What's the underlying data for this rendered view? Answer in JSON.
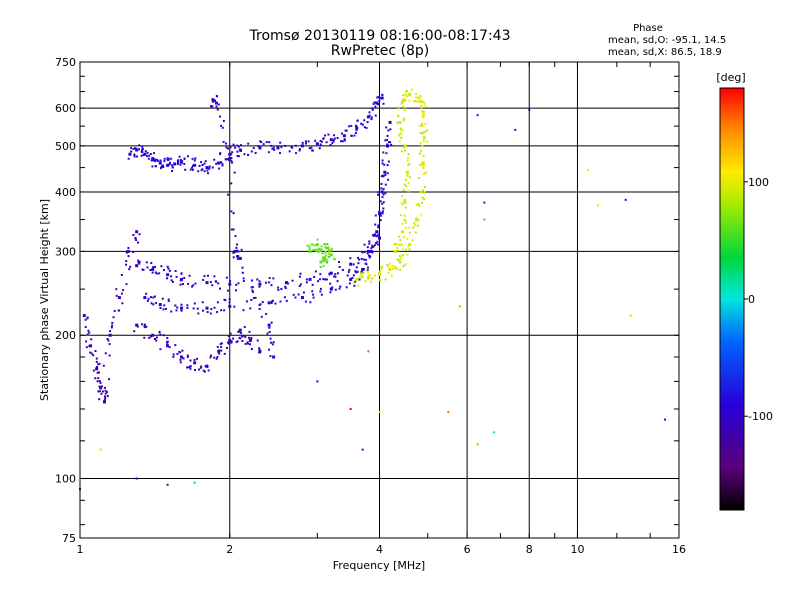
{
  "chart_data": {
    "type": "scatter",
    "title": "Tromsø 20130119 08:16:00-08:17:43",
    "subtitle": "RwPretec (8p)",
    "xlabel": "Frequency [MHz]",
    "ylabel": "Stationary phase Virtual Height [km]",
    "x_scale": "log",
    "y_scale": "log",
    "xlim": [
      1,
      16
    ],
    "ylim": [
      75,
      750
    ],
    "x_ticks": [
      1,
      2,
      4,
      6,
      8,
      10,
      16
    ],
    "y_ticks": [
      75,
      100,
      200,
      300,
      400,
      500,
      600,
      750
    ],
    "grid_x": [
      2,
      4,
      6,
      8,
      10
    ],
    "grid_y": [
      100,
      200,
      300,
      400,
      500,
      600
    ],
    "stats": {
      "heading": "Phase",
      "line_o": "mean, sd,O: -95.1, 14.5",
      "line_x": "mean, sd,X: 86.5, 18.9"
    },
    "colorbar": {
      "label": "[deg]",
      "ticks": [
        "100",
        "0",
        "-100"
      ],
      "tick_values": [
        100,
        0,
        -100
      ],
      "range": [
        -180,
        180
      ]
    },
    "traces": [
      {
        "name": "",
        "phase": -95,
        "points": [
          [
            1.26,
            480
          ],
          [
            1.3,
            490
          ],
          [
            1.35,
            480
          ],
          [
            1.4,
            470
          ],
          [
            1.45,
            460
          ],
          [
            1.5,
            455
          ],
          [
            1.55,
            458
          ],
          [
            1.6,
            462
          ],
          [
            1.7,
            455
          ],
          [
            1.8,
            450
          ],
          [
            1.9,
            460
          ],
          [
            2.0,
            480
          ],
          [
            2.1,
            490
          ],
          [
            2.3,
            495
          ],
          [
            2.5,
            495
          ],
          [
            2.8,
            500
          ],
          [
            3.0,
            505
          ],
          [
            3.2,
            515
          ],
          [
            3.4,
            525
          ],
          [
            3.6,
            545
          ],
          [
            3.8,
            575
          ],
          [
            3.95,
            615
          ],
          [
            4.05,
            630
          ]
        ]
      },
      {
        "name": "",
        "phase": -95,
        "points": [
          [
            1.35,
            240
          ],
          [
            1.45,
            232
          ],
          [
            1.6,
            228
          ],
          [
            1.8,
            228
          ],
          [
            2.0,
            230
          ],
          [
            2.4,
            234
          ],
          [
            2.8,
            240
          ],
          [
            3.2,
            250
          ],
          [
            3.5,
            262
          ],
          [
            3.7,
            275
          ],
          [
            3.85,
            300
          ],
          [
            3.95,
            330
          ],
          [
            4.0,
            360
          ],
          [
            4.05,
            400
          ],
          [
            4.1,
            440
          ],
          [
            4.15,
            500
          ],
          [
            4.2,
            560
          ]
        ]
      },
      {
        "name": "",
        "phase": -100,
        "points": [
          [
            1.3,
            280
          ],
          [
            1.4,
            275
          ],
          [
            1.5,
            268
          ],
          [
            1.6,
            262
          ],
          [
            1.8,
            258
          ],
          [
            2.0,
            256
          ],
          [
            2.3,
            256
          ],
          [
            2.6,
            258
          ],
          [
            2.9,
            262
          ],
          [
            3.2,
            270
          ],
          [
            3.5,
            282
          ],
          [
            3.8,
            300
          ],
          [
            4.0,
            320
          ]
        ]
      },
      {
        "name": "",
        "phase": 95,
        "points": [
          [
            3.6,
            262
          ],
          [
            3.8,
            264
          ],
          [
            4.0,
            268
          ],
          [
            4.2,
            275
          ],
          [
            4.4,
            285
          ],
          [
            4.6,
            310
          ],
          [
            4.75,
            350
          ],
          [
            4.85,
            400
          ],
          [
            4.9,
            460
          ],
          [
            4.92,
            520
          ],
          [
            4.9,
            580
          ],
          [
            4.85,
            620
          ],
          [
            4.6,
            640
          ],
          [
            4.45,
            620
          ],
          [
            4.4,
            560
          ],
          [
            4.5,
            500
          ],
          [
            4.55,
            440
          ],
          [
            4.5,
            380
          ],
          [
            4.45,
            330
          ],
          [
            4.3,
            300
          ]
        ]
      },
      {
        "name": "",
        "phase": 60,
        "points": [
          [
            2.9,
            300
          ],
          [
            3.0,
            310
          ],
          [
            3.1,
            290
          ],
          [
            3.15,
            305
          ],
          [
            3.2,
            295
          ],
          [
            3.05,
            285
          ]
        ]
      },
      {
        "name": "",
        "phase": -110,
        "points": [
          [
            1.3,
            210
          ],
          [
            1.4,
            200
          ],
          [
            1.5,
            190
          ],
          [
            1.6,
            180
          ],
          [
            1.7,
            175
          ],
          [
            1.8,
            172
          ],
          [
            1.9,
            185
          ],
          [
            2.0,
            195
          ],
          [
            2.1,
            205
          ],
          [
            2.2,
            195
          ],
          [
            2.3,
            185
          ]
        ]
      },
      {
        "name": "",
        "phase": -110,
        "points": [
          [
            1.02,
            220
          ],
          [
            1.05,
            190
          ],
          [
            1.08,
            170
          ],
          [
            1.1,
            155
          ],
          [
            1.12,
            145
          ],
          [
            1.15,
            200
          ],
          [
            1.2,
            240
          ],
          [
            1.25,
            300
          ],
          [
            1.3,
            330
          ]
        ]
      },
      {
        "name": "",
        "phase": -105,
        "points": [
          [
            1.85,
            625
          ],
          [
            1.88,
            615
          ],
          [
            2.0,
            470
          ],
          [
            2.05,
            300
          ],
          [
            2.1,
            290
          ],
          [
            2.4,
            210
          ],
          [
            2.45,
            180
          ]
        ]
      }
    ],
    "scattered_points": [
      [
        10.5,
        445,
        110
      ],
      [
        11.0,
        375,
        95
      ],
      [
        12.5,
        385,
        -100
      ],
      [
        12.8,
        220,
        120
      ],
      [
        15.0,
        133,
        -95
      ],
      [
        6.5,
        380,
        -100
      ],
      [
        6.5,
        350,
        150
      ],
      [
        6.8,
        125,
        20
      ],
      [
        7.5,
        540,
        -110
      ],
      [
        8.0,
        595,
        -120
      ],
      [
        6.3,
        580,
        -100
      ],
      [
        6.3,
        118,
        140
      ],
      [
        5.8,
        230,
        140
      ],
      [
        5.5,
        138,
        150
      ],
      [
        3.8,
        185,
        160
      ],
      [
        3.5,
        140,
        180
      ],
      [
        3.7,
        115,
        -100
      ],
      [
        3.0,
        160,
        -100
      ],
      [
        1.0,
        95,
        -100
      ],
      [
        1.5,
        97,
        -110
      ],
      [
        1.3,
        100,
        -100
      ],
      [
        1.1,
        115,
        90
      ],
      [
        1.7,
        98,
        30
      ],
      [
        4.0,
        138,
        100
      ]
    ]
  }
}
